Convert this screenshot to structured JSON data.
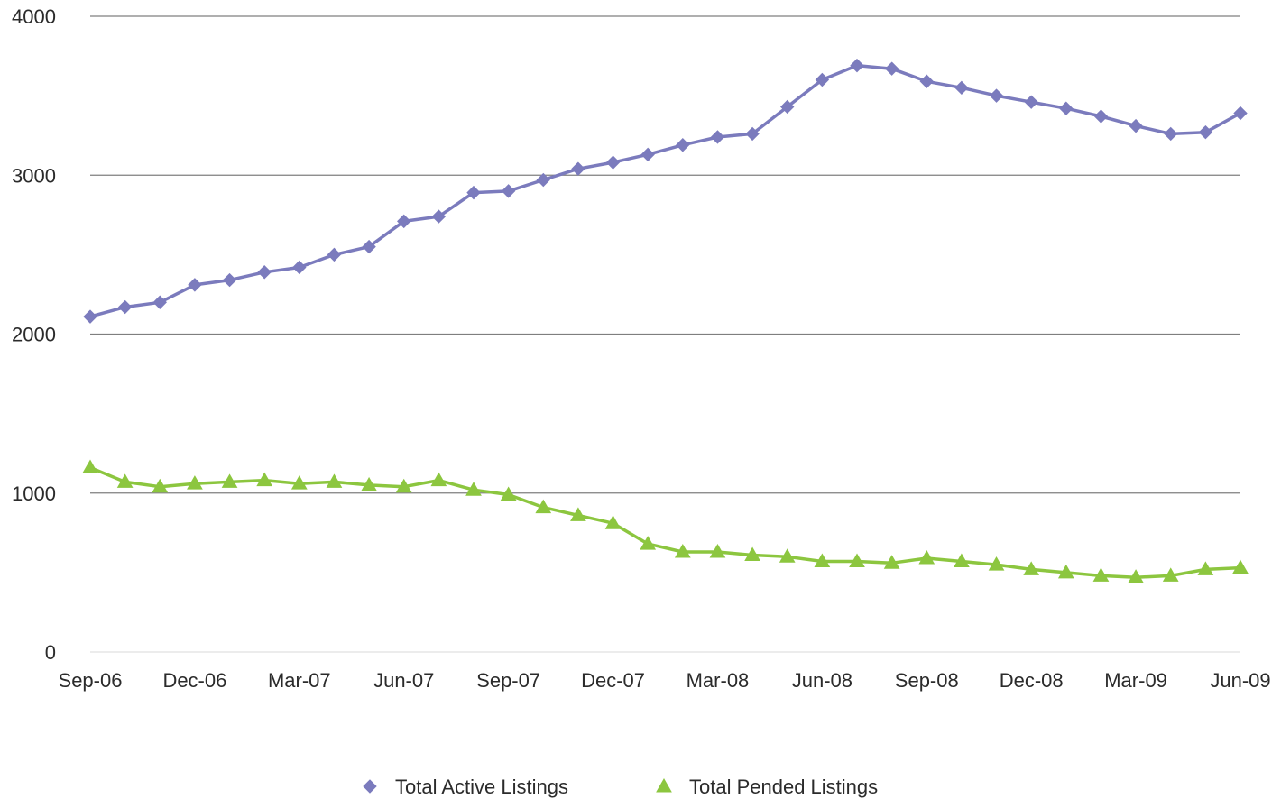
{
  "chart_data": {
    "type": "line",
    "title": "",
    "xlabel": "",
    "ylabel": "",
    "ylim": [
      0,
      4000
    ],
    "yticks": [
      0,
      1000,
      2000,
      3000,
      4000
    ],
    "grid": "horizontal",
    "legend_position": "bottom",
    "x": [
      "Sep-06",
      "Oct-06",
      "Nov-06",
      "Dec-06",
      "Jan-07",
      "Feb-07",
      "Mar-07",
      "Apr-07",
      "May-07",
      "Jun-07",
      "Jul-07",
      "Aug-07",
      "Sep-07",
      "Oct-07",
      "Nov-07",
      "Dec-07",
      "Jan-08",
      "Feb-08",
      "Mar-08",
      "Apr-08",
      "May-08",
      "Jun-08",
      "Jul-08",
      "Aug-08",
      "Sep-08",
      "Oct-08",
      "Nov-08",
      "Dec-08",
      "Jan-09",
      "Feb-09",
      "Mar-09",
      "Apr-09",
      "May-09",
      "Jun-09"
    ],
    "x_tick_labels": [
      "Sep-06",
      "Dec-06",
      "Mar-07",
      "Jun-07",
      "Sep-07",
      "Dec-07",
      "Mar-08",
      "Jun-08",
      "Sep-08",
      "Dec-08",
      "Mar-09",
      "Jun-09"
    ],
    "series": [
      {
        "name": "Total Active Listings",
        "color": "#7b7bbd",
        "marker": "diamond",
        "values": [
          2110,
          2170,
          2200,
          2310,
          2340,
          2390,
          2420,
          2500,
          2550,
          2710,
          2740,
          2890,
          2900,
          2970,
          3040,
          3080,
          3130,
          3190,
          3240,
          3260,
          3430,
          3600,
          3690,
          3670,
          3590,
          3550,
          3500,
          3460,
          3420,
          3370,
          3310,
          3260,
          3270,
          3390
        ]
      },
      {
        "name": "Total Pended Listings",
        "color": "#8cc63f",
        "marker": "triangle",
        "values": [
          1160,
          1070,
          1040,
          1060,
          1070,
          1080,
          1060,
          1070,
          1050,
          1040,
          1080,
          1020,
          990,
          910,
          860,
          810,
          680,
          630,
          630,
          610,
          600,
          570,
          570,
          560,
          590,
          570,
          550,
          520,
          500,
          480,
          470,
          480,
          520,
          530
        ]
      }
    ]
  }
}
